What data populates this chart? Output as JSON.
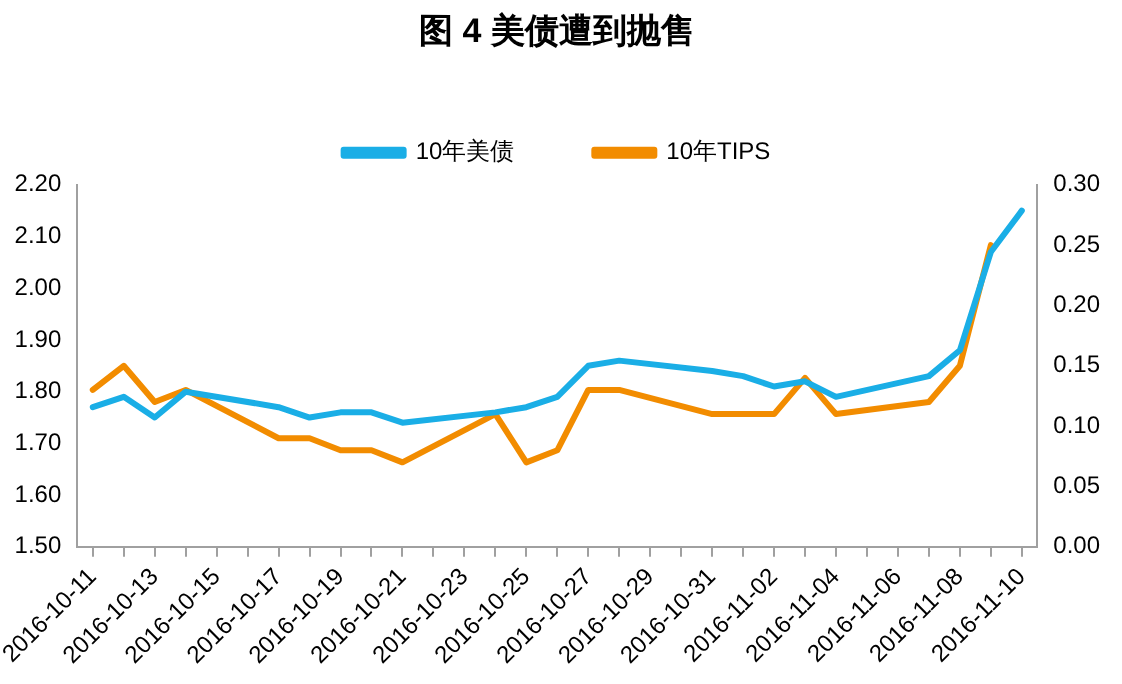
{
  "chart_data": {
    "type": "line",
    "title": "图 4 美债遭到抛售",
    "categories": [
      "2016-10-11",
      null,
      "2016-10-13",
      null,
      "2016-10-15",
      null,
      "2016-10-17",
      null,
      "2016-10-19",
      null,
      "2016-10-21",
      null,
      "2016-10-23",
      null,
      "2016-10-25",
      null,
      "2016-10-27",
      null,
      "2016-10-29",
      null,
      "2016-10-31",
      null,
      "2016-11-02",
      null,
      "2016-11-04",
      null,
      "2016-11-06",
      null,
      "2016-11-08",
      null,
      "2016-11-10"
    ],
    "series": [
      {
        "name": "10年美债",
        "color": "#1aaee6",
        "values": [
          1.77,
          1.79,
          1.75,
          1.8,
          null,
          null,
          1.77,
          1.75,
          1.76,
          1.76,
          1.74,
          null,
          null,
          1.76,
          1.77,
          1.79,
          1.85,
          1.86,
          null,
          null,
          1.84,
          1.83,
          1.81,
          1.82,
          1.79,
          null,
          null,
          1.83,
          1.88,
          2.07,
          2.15
        ]
      },
      {
        "name": "10年TIPS",
        "color": "#f28c00",
        "axis": "y2",
        "values": [
          0.13,
          0.15,
          0.12,
          0.13,
          null,
          null,
          0.09,
          0.09,
          0.08,
          0.08,
          0.07,
          null,
          null,
          0.11,
          0.07,
          0.08,
          0.13,
          0.13,
          null,
          null,
          0.11,
          0.11,
          0.11,
          0.14,
          0.11,
          null,
          null,
          0.12,
          0.15,
          0.25,
          null
        ]
      }
    ],
    "ylim": [
      1.5,
      2.2
    ],
    "yticks": [
      {
        "value": 1.5,
        "label": "1.50"
      },
      {
        "value": 1.6,
        "label": "1.60"
      },
      {
        "value": 1.7,
        "label": "1.70"
      },
      {
        "value": 1.8,
        "label": "1.80"
      },
      {
        "value": 1.9,
        "label": "1.90"
      },
      {
        "value": 2.0,
        "label": "2.00"
      },
      {
        "value": 2.1,
        "label": "2.10"
      },
      {
        "value": 2.2,
        "label": "2.20"
      }
    ],
    "y2lim": [
      0,
      0.3
    ],
    "y2ticks": [
      {
        "value": 0,
        "label": "0.00"
      },
      {
        "value": 0.05,
        "label": "0.05"
      },
      {
        "value": 0.1,
        "label": "0.10"
      },
      {
        "value": 0.15,
        "label": "0.15"
      },
      {
        "value": 0.2,
        "label": "0.20"
      },
      {
        "value": 0.25,
        "label": "0.25"
      },
      {
        "value": 0.3,
        "label": "0.30"
      }
    ],
    "grid": false,
    "legend": "top",
    "marker": "none",
    "line_style": "solid"
  }
}
